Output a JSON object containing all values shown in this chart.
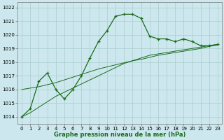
{
  "hours": [
    0,
    1,
    2,
    3,
    4,
    5,
    6,
    7,
    8,
    9,
    10,
    11,
    12,
    13,
    14,
    15,
    16,
    17,
    18,
    19,
    20,
    21,
    22,
    23
  ],
  "pressure_main": [
    1014.0,
    1014.6,
    1016.6,
    1017.2,
    1016.0,
    1015.3,
    1016.0,
    1017.0,
    1018.3,
    1019.5,
    1020.3,
    1021.35,
    1021.5,
    1021.5,
    1021.2,
    1019.9,
    1019.7,
    1019.7,
    1019.5,
    1019.7,
    1019.5,
    1019.2,
    1019.2,
    1019.3
  ],
  "pressure_line2": [
    1014.0,
    1014.3,
    1014.7,
    1015.1,
    1015.5,
    1015.8,
    1016.1,
    1016.4,
    1016.7,
    1017.0,
    1017.3,
    1017.6,
    1017.9,
    1018.1,
    1018.3,
    1018.5,
    1018.6,
    1018.7,
    1018.8,
    1018.9,
    1019.0,
    1019.1,
    1019.2,
    1019.3
  ],
  "pressure_line3": [
    1016.0,
    1016.1,
    1016.2,
    1016.35,
    1016.5,
    1016.7,
    1016.9,
    1017.1,
    1017.3,
    1017.5,
    1017.65,
    1017.8,
    1017.95,
    1018.1,
    1018.2,
    1018.35,
    1018.5,
    1018.6,
    1018.7,
    1018.8,
    1018.9,
    1019.0,
    1019.15,
    1019.25
  ],
  "bg_color": "#cce8ee",
  "grid_color": "#aacccc",
  "line_color": "#1a6b1a",
  "xlabel": "Graphe pression niveau de la mer (hPa)",
  "ylim_min": 1013.5,
  "ylim_max": 1022.4,
  "yticks": [
    1014,
    1015,
    1016,
    1017,
    1018,
    1019,
    1020,
    1021,
    1022
  ],
  "xticks": [
    0,
    1,
    2,
    3,
    4,
    5,
    6,
    7,
    8,
    9,
    10,
    11,
    12,
    13,
    14,
    15,
    16,
    17,
    18,
    19,
    20,
    21,
    22,
    23
  ],
  "tick_fontsize": 5.0,
  "xlabel_fontsize": 6.0,
  "figwidth": 3.2,
  "figheight": 2.0,
  "dpi": 100
}
